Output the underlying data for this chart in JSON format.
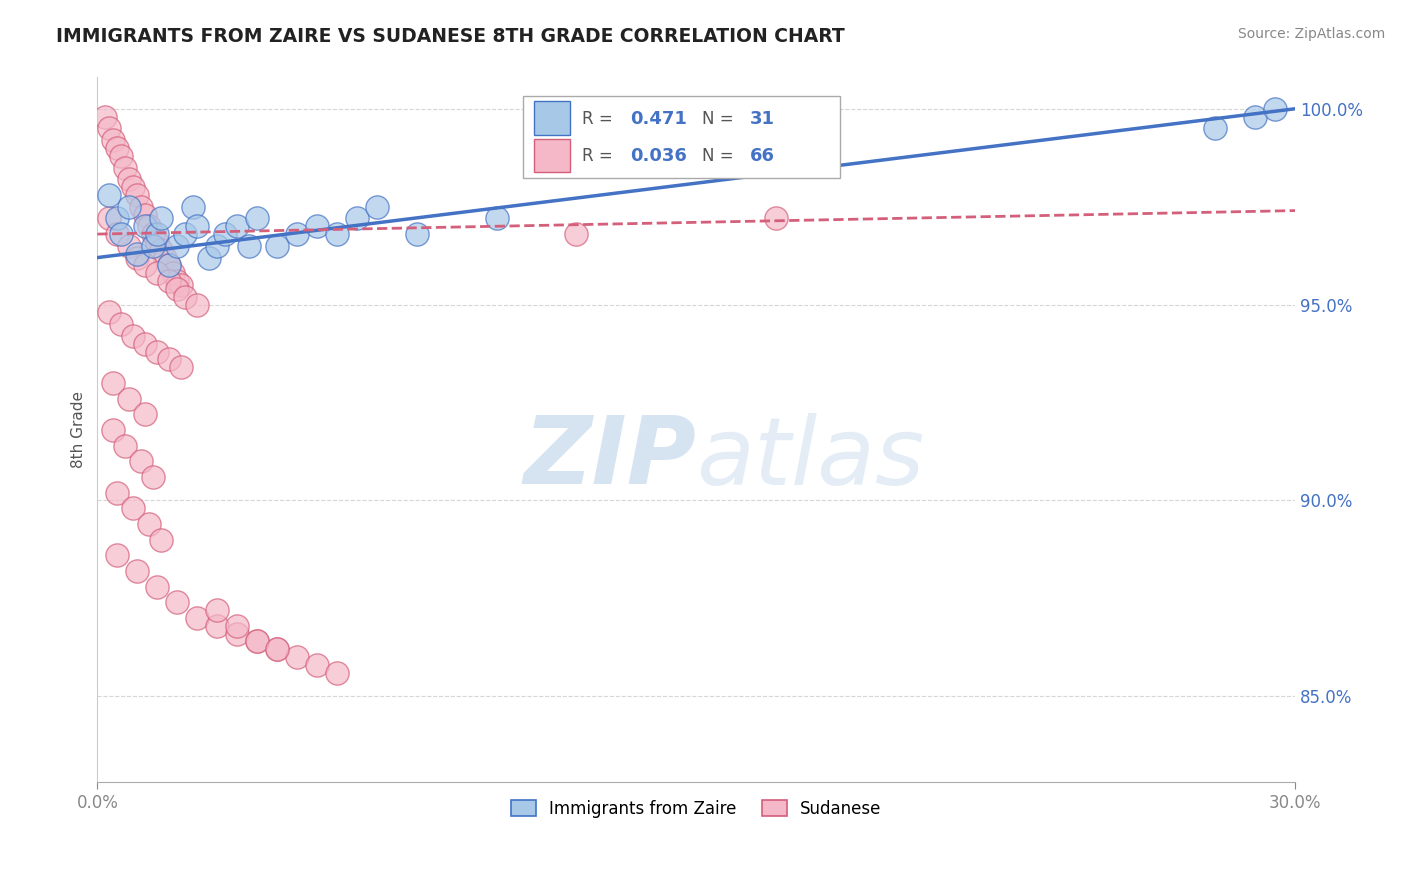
{
  "title": "IMMIGRANTS FROM ZAIRE VS SUDANESE 8TH GRADE CORRELATION CHART",
  "source_text": "Source: ZipAtlas.com",
  "ylabel": "8th Grade",
  "xlim": [
    0.0,
    0.3
  ],
  "ylim": [
    0.828,
    1.008
  ],
  "xtick_labels": [
    "0.0%",
    "30.0%"
  ],
  "xtick_vals": [
    0.0,
    0.3
  ],
  "ytick_labels": [
    "85.0%",
    "90.0%",
    "95.0%",
    "100.0%"
  ],
  "ytick_vals": [
    0.85,
    0.9,
    0.95,
    1.0
  ],
  "blue_color": "#A8C8E8",
  "pink_color": "#F4B8C8",
  "blue_line_color": "#4472C4",
  "pink_line_color": "#D45F7A",
  "grid_color": "#CCCCCC",
  "watermark_zip": "ZIP",
  "watermark_atlas": "atlas",
  "blue_scatter_x": [
    0.003,
    0.005,
    0.006,
    0.008,
    0.01,
    0.012,
    0.014,
    0.015,
    0.016,
    0.018,
    0.02,
    0.022,
    0.024,
    0.025,
    0.028,
    0.03,
    0.032,
    0.035,
    0.038,
    0.04,
    0.045,
    0.05,
    0.055,
    0.06,
    0.065,
    0.07,
    0.08,
    0.1,
    0.28,
    0.29,
    0.295
  ],
  "blue_scatter_y": [
    0.978,
    0.972,
    0.968,
    0.975,
    0.963,
    0.97,
    0.965,
    0.968,
    0.972,
    0.96,
    0.965,
    0.968,
    0.975,
    0.97,
    0.962,
    0.965,
    0.968,
    0.97,
    0.965,
    0.972,
    0.965,
    0.968,
    0.97,
    0.968,
    0.972,
    0.975,
    0.968,
    0.972,
    0.995,
    0.998,
    1.0
  ],
  "pink_scatter_x": [
    0.002,
    0.003,
    0.004,
    0.005,
    0.006,
    0.007,
    0.008,
    0.009,
    0.01,
    0.011,
    0.012,
    0.013,
    0.014,
    0.015,
    0.016,
    0.017,
    0.018,
    0.019,
    0.02,
    0.021,
    0.003,
    0.005,
    0.008,
    0.01,
    0.012,
    0.015,
    0.018,
    0.02,
    0.022,
    0.025,
    0.003,
    0.006,
    0.009,
    0.012,
    0.015,
    0.018,
    0.021,
    0.004,
    0.008,
    0.012,
    0.004,
    0.007,
    0.011,
    0.014,
    0.005,
    0.009,
    0.013,
    0.016,
    0.005,
    0.01,
    0.015,
    0.02,
    0.025,
    0.03,
    0.035,
    0.04,
    0.045,
    0.05,
    0.055,
    0.06,
    0.03,
    0.035,
    0.04,
    0.045,
    0.12,
    0.17
  ],
  "pink_scatter_y": [
    0.998,
    0.995,
    0.992,
    0.99,
    0.988,
    0.985,
    0.982,
    0.98,
    0.978,
    0.975,
    0.973,
    0.97,
    0.968,
    0.966,
    0.964,
    0.962,
    0.96,
    0.958,
    0.956,
    0.955,
    0.972,
    0.968,
    0.965,
    0.962,
    0.96,
    0.958,
    0.956,
    0.954,
    0.952,
    0.95,
    0.948,
    0.945,
    0.942,
    0.94,
    0.938,
    0.936,
    0.934,
    0.93,
    0.926,
    0.922,
    0.918,
    0.914,
    0.91,
    0.906,
    0.902,
    0.898,
    0.894,
    0.89,
    0.886,
    0.882,
    0.878,
    0.874,
    0.87,
    0.868,
    0.866,
    0.864,
    0.862,
    0.86,
    0.858,
    0.856,
    0.872,
    0.868,
    0.864,
    0.862,
    0.968,
    0.972
  ]
}
